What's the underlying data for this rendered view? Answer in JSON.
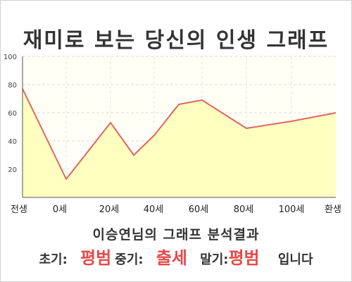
{
  "title": "재미로 보는 당신의 인생 그래프",
  "analysis_title": "이승연님의 그래프 분석결과",
  "result": {
    "early_label": "초기:",
    "early_value": "평범",
    "middle_label": "중기:",
    "middle_value": "출세",
    "late_label": "말기:",
    "late_value": "평범",
    "suffix": "입니다"
  },
  "colors": {
    "line": "#e06666",
    "fill": "#ffffc0",
    "plot_bg_top": "#fffff0",
    "result_value": "#e64a4a"
  },
  "chart_data": {
    "type": "area",
    "title": "재미로 보는 당신의 인생 그래프",
    "xlabel": "",
    "ylabel": "",
    "ylim": [
      0,
      100
    ],
    "y_ticks": [
      20,
      40,
      60,
      80,
      100
    ],
    "x_tick_labels": [
      "전생",
      "0세",
      "20세",
      "40세",
      "60세",
      "80세",
      "100세",
      "환생"
    ],
    "grid": true,
    "series": [
      {
        "points": [
          {
            "x": "전생",
            "y": 77
          },
          {
            "x": "0세",
            "y": 13
          },
          {
            "x": "20세",
            "y": 53
          },
          {
            "x": "30세",
            "y": 30
          },
          {
            "x": "40세",
            "y": 44
          },
          {
            "x": "50세",
            "y": 66
          },
          {
            "x": "60세",
            "y": 69
          },
          {
            "x": "80세",
            "y": 49
          },
          {
            "x": "100세",
            "y": 54
          },
          {
            "x": "환생",
            "y": 60
          }
        ]
      }
    ]
  }
}
